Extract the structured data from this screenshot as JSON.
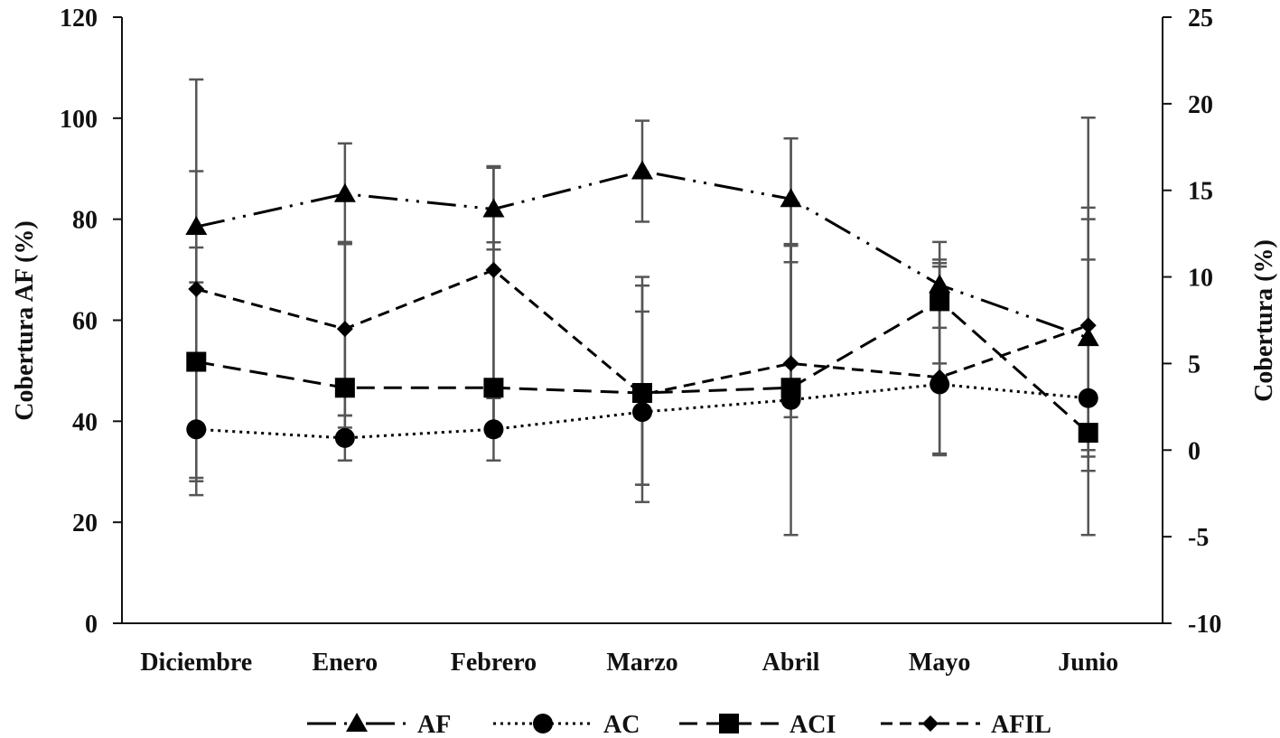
{
  "chart_data": {
    "type": "line",
    "categories": [
      "Diciembre",
      "Enero",
      "Febrero",
      "Marzo",
      "Abril",
      "Mayo",
      "Junio"
    ],
    "y_left": {
      "label": "Cobertura AF (%)",
      "range": [
        0,
        120
      ],
      "ticks": [
        0,
        20,
        40,
        60,
        80,
        100,
        120
      ]
    },
    "y_right": {
      "label": "Cobertura (%)",
      "range": [
        -10,
        25
      ],
      "ticks": [
        -10,
        -5,
        0,
        5,
        10,
        15,
        20,
        25
      ]
    },
    "grid": false,
    "legend_position": "bottom",
    "series": [
      {
        "name": "AF",
        "axis": "left",
        "marker": "triangle",
        "dash": "long-dash-dot-dot",
        "values": [
          78.5,
          85.0,
          82.0,
          89.5,
          84.0,
          67.0,
          56.5
        ],
        "err_low": [
          67.5,
          75.5,
          74.0,
          79.5,
          71.5,
          58.5,
          33.0
        ],
        "err_high": [
          89.5,
          95.0,
          90.5,
          99.5,
          96.0,
          75.5,
          80.0
        ]
      },
      {
        "name": "AC",
        "axis": "right",
        "marker": "circle",
        "dash": "dotted",
        "values": [
          1.2,
          0.7,
          1.2,
          2.2,
          2.9,
          3.8,
          3.0
        ],
        "err_low": [
          -1.8,
          -0.6,
          -0.6,
          -3.0,
          -4.9,
          -0.2,
          -4.9
        ],
        "err_high": [
          4.7,
          2.0,
          3.0,
          10.0,
          11.9,
          11.0,
          11.0
        ]
      },
      {
        "name": "ACI",
        "axis": "right",
        "marker": "square",
        "dash": "dashed",
        "values": [
          5.1,
          3.6,
          3.6,
          3.3,
          3.6,
          8.6,
          1.0
        ],
        "err_low": [
          -1.6,
          1.3,
          1.3,
          -2.0,
          1.9,
          5.0,
          -1.2
        ],
        "err_high": [
          11.7,
          11.9,
          12.0,
          8.0,
          11.8,
          10.8,
          19.2
        ]
      },
      {
        "name": "AFIL",
        "axis": "right",
        "marker": "diamond",
        "dash": "short-dashed",
        "values": [
          9.3,
          7.0,
          10.4,
          3.2,
          5.0,
          4.2,
          7.2
        ],
        "err_low": [
          -2.6,
          2.0,
          0.8,
          -2.0,
          3.4,
          -0.3,
          0.0
        ],
        "err_high": [
          21.4,
          11.9,
          16.3,
          9.5,
          18.0,
          10.6,
          14.0
        ]
      }
    ]
  }
}
